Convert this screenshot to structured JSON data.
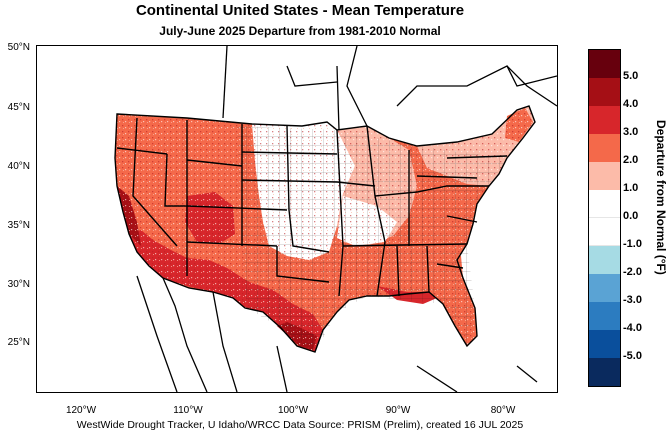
{
  "title": "Continental United States - Mean Temperature",
  "subtitle": "July-June 2025  Departure from 1981-2010 Normal",
  "footer": "WestWide Drought Tracker, U Idaho/WRCC Data Source: PRISM (Prelim), created 16 JUL 2025",
  "lat_labels": [
    "50°N",
    "45°N",
    "40°N",
    "35°N",
    "30°N",
    "25°N"
  ],
  "lon_labels": [
    "120°W",
    "110°W",
    "100°W",
    "90°W",
    "80°W"
  ],
  "legend": {
    "title": "Departure from Normal (°F)",
    "labels": [
      "5.0",
      "4.0",
      "3.0",
      "2.0",
      "1.0",
      "0.0",
      "-1.0",
      "-2.0",
      "-3.0",
      "-4.0",
      "-5.0"
    ],
    "colors": [
      "#67000d",
      "#a50f15",
      "#d7262b",
      "#f4694a",
      "#fcbba9",
      "#ffffff",
      "#ffffff",
      "#a6dbe4",
      "#5aa3d4",
      "#2c7cc0",
      "#0a4f9c",
      "#0a2a5e"
    ]
  }
}
